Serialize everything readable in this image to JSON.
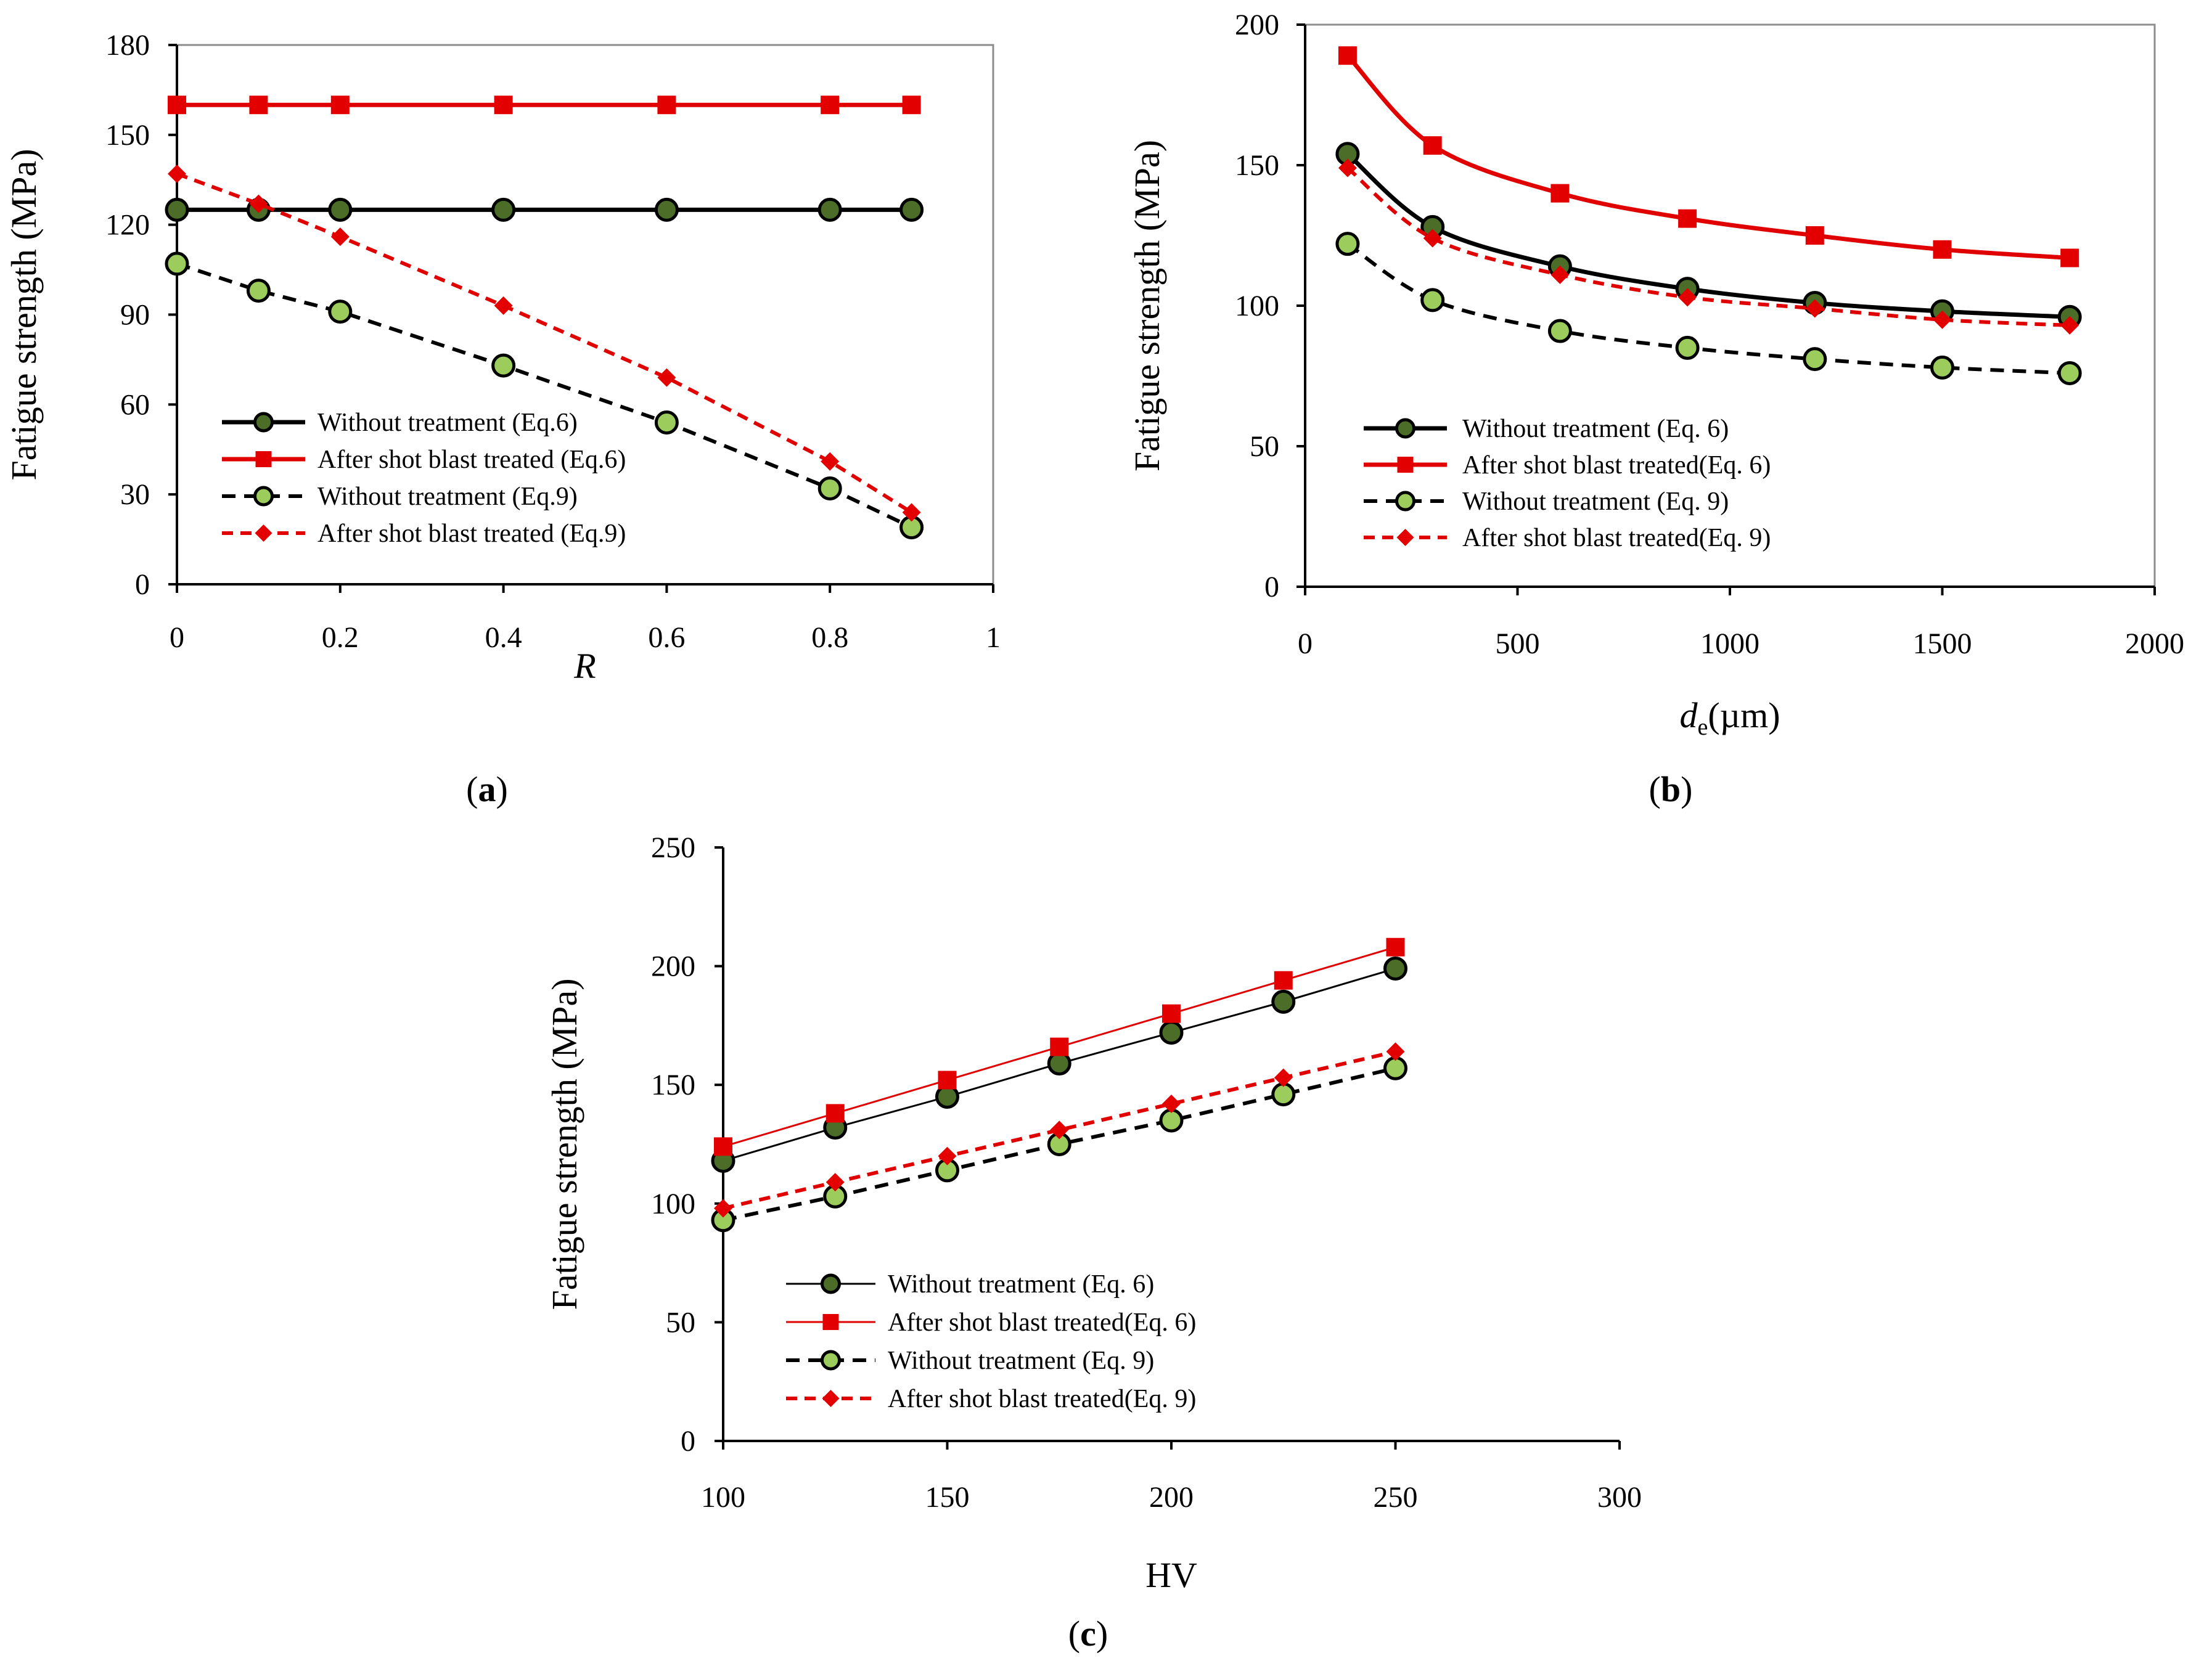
{
  "colors": {
    "black_line": "#000000",
    "red_line": "#e00000",
    "red_marker": "#e30000",
    "dark_green_marker": "#4b6d28",
    "light_green_marker": "#9ccc5c"
  },
  "chart_data": [
    {
      "panel_label": "(a)",
      "panel_letter": "a",
      "type": "line",
      "title": "",
      "xlabel": "R",
      "ylabel": "Fatigue strength (MPa)",
      "xlim": [
        0,
        1
      ],
      "ylim": [
        0,
        180
      ],
      "xticks": [
        0,
        0.2,
        0.4,
        0.6,
        0.8,
        1
      ],
      "xtick_labels": [
        "0",
        "0.2",
        "0.4",
        "0.6",
        "0.8",
        "1"
      ],
      "yticks": [
        0,
        30,
        60,
        90,
        120,
        150,
        180
      ],
      "ytick_labels": [
        "0",
        "30",
        "60",
        "90",
        "120",
        "150",
        "180"
      ],
      "legend_position": "bottom-left",
      "series": [
        {
          "name": "Without treatment (Eq.6)",
          "style": "solid-black-circle",
          "x": [
            0,
            0.1,
            0.2,
            0.4,
            0.6,
            0.8,
            0.9
          ],
          "y": [
            125,
            125,
            125,
            125,
            125,
            125,
            125
          ]
        },
        {
          "name": "After shot blast treated (Eq.6)",
          "style": "solid-red-square",
          "x": [
            0,
            0.1,
            0.2,
            0.4,
            0.6,
            0.8,
            0.9
          ],
          "y": [
            160,
            160,
            160,
            160,
            160,
            160,
            160
          ]
        },
        {
          "name": "Without treatment (Eq.9)",
          "style": "dashed-black-lightcircle",
          "x": [
            0,
            0.1,
            0.2,
            0.4,
            0.6,
            0.8,
            0.9
          ],
          "y": [
            107,
            98,
            91,
            73,
            54,
            32,
            19
          ]
        },
        {
          "name": "After shot blast treated (Eq.9)",
          "style": "dashed-red-diamond",
          "x": [
            0,
            0.1,
            0.2,
            0.4,
            0.6,
            0.8,
            0.9
          ],
          "y": [
            137,
            127,
            116,
            93,
            69,
            41,
            24
          ]
        }
      ]
    },
    {
      "panel_label": "(b)",
      "panel_letter": "b",
      "type": "line",
      "title": "",
      "xlabel": "de (µm)",
      "xlabel_main": "d",
      "xlabel_sub": "e",
      "xlabel_unit": "(µm)",
      "ylabel": "Fatigue strength (MPa)",
      "xlim": [
        0,
        2000
      ],
      "ylim": [
        0,
        200
      ],
      "xticks": [
        0,
        500,
        1000,
        1500,
        2000
      ],
      "xtick_labels": [
        "0",
        "500",
        "1000",
        "1500",
        "2000"
      ],
      "yticks": [
        0,
        50,
        100,
        150,
        200
      ],
      "ytick_labels": [
        "0",
        "50",
        "100",
        "150",
        "200"
      ],
      "legend_position": "bottom-left",
      "series": [
        {
          "name": "Without treatment (Eq. 6)",
          "style": "solid-black-circle",
          "x": [
            100,
            300,
            600,
            900,
            1200,
            1500,
            1800
          ],
          "y": [
            154,
            128,
            114,
            106,
            101,
            98,
            96
          ]
        },
        {
          "name": "After shot blast treated(Eq. 6)",
          "style": "solid-red-square",
          "x": [
            100,
            300,
            600,
            900,
            1200,
            1500,
            1800
          ],
          "y": [
            189,
            157,
            140,
            131,
            125,
            120,
            117
          ]
        },
        {
          "name": "Without treatment (Eq. 9)",
          "style": "dashed-black-lightcircle",
          "x": [
            100,
            300,
            600,
            900,
            1200,
            1500,
            1800
          ],
          "y": [
            122,
            102,
            91,
            85,
            81,
            78,
            76
          ]
        },
        {
          "name": "After shot blast treated(Eq. 9)",
          "style": "dashed-red-diamond",
          "x": [
            100,
            300,
            600,
            900,
            1200,
            1500,
            1800
          ],
          "y": [
            149,
            124,
            111,
            103,
            99,
            95,
            93
          ]
        }
      ]
    },
    {
      "panel_label": "(c)",
      "panel_letter": "c",
      "type": "line",
      "title": "",
      "xlabel": "HV",
      "ylabel": "Fatigue strength (MPa)",
      "xlim": [
        100,
        300
      ],
      "ylim": [
        0,
        250
      ],
      "xticks": [
        100,
        150,
        200,
        250,
        300
      ],
      "xtick_labels": [
        "100",
        "150",
        "200",
        "250",
        "300"
      ],
      "yticks": [
        0,
        50,
        100,
        150,
        200,
        250
      ],
      "ytick_labels": [
        "0",
        "50",
        "100",
        "150",
        "200",
        "250"
      ],
      "legend_position": "bottom-left",
      "series": [
        {
          "name": "Without treatment (Eq. 6)",
          "style": "thin-black-circle",
          "x": [
            100,
            125,
            150,
            175,
            200,
            225,
            250
          ],
          "y": [
            118,
            132,
            145,
            159,
            172,
            185,
            199
          ]
        },
        {
          "name": "After shot blast treated(Eq. 6)",
          "style": "thin-red-square",
          "x": [
            100,
            125,
            150,
            175,
            200,
            225,
            250
          ],
          "y": [
            124,
            138,
            152,
            166,
            180,
            194,
            208
          ]
        },
        {
          "name": "Without treatment (Eq. 9)",
          "style": "dashed-black-lightcircle",
          "x": [
            100,
            125,
            150,
            175,
            200,
            225,
            250
          ],
          "y": [
            93,
            103,
            114,
            125,
            135,
            146,
            157
          ]
        },
        {
          "name": "After shot blast treated(Eq. 9)",
          "style": "dashed-red-diamond",
          "x": [
            100,
            125,
            150,
            175,
            200,
            225,
            250
          ],
          "y": [
            98,
            109,
            120,
            131,
            142,
            153,
            164
          ]
        }
      ]
    }
  ]
}
